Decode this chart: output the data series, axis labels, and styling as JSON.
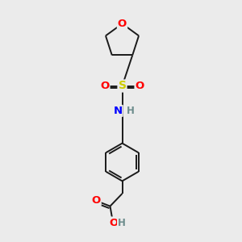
{
  "background_color": "#ebebeb",
  "bond_color": "#1a1a1a",
  "atom_colors": {
    "O": "#ff0000",
    "S": "#cccc00",
    "N": "#0000ff",
    "C": "#1a1a1a",
    "H": "#6c8c8c"
  },
  "figsize": [
    3.0,
    3.0
  ],
  "dpi": 100,
  "lw": 1.4,
  "fontsize": 8.5
}
